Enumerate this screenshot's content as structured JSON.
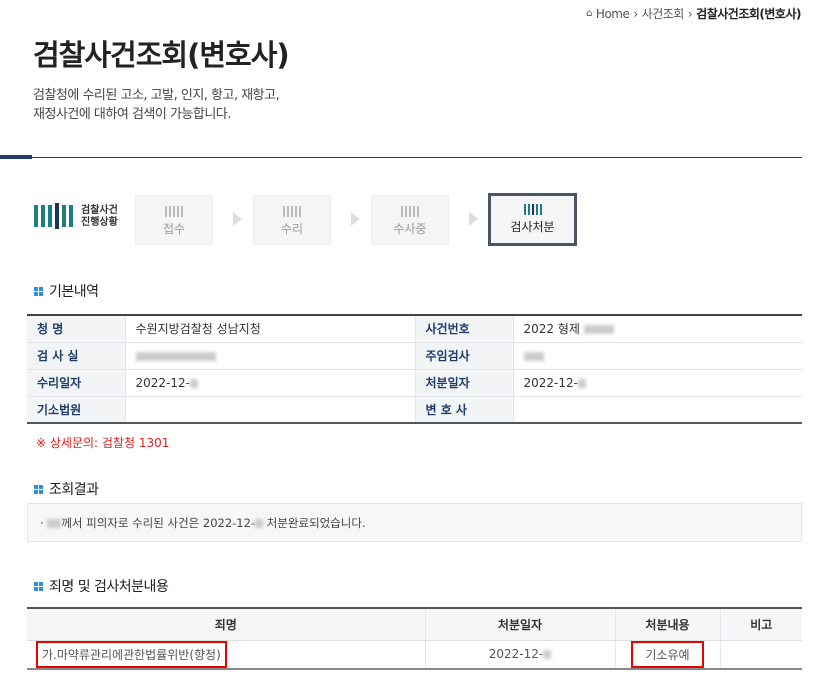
{
  "breadcrumb": {
    "home": "Home",
    "level1": "사건조회",
    "current": "검찰사건조회(변호사)"
  },
  "page": {
    "title": "검찰사건조회(변호사)",
    "desc_line1": "검찰청에 수리된 고소, 고발, 인지, 항고, 재항고,",
    "desc_line2": "재정사건에 대하여 검색이 가능합니다."
  },
  "progress": {
    "label_line1": "검찰사건",
    "label_line2": "진행상황",
    "steps": [
      {
        "label": "접수",
        "active": false
      },
      {
        "label": "수리",
        "active": false
      },
      {
        "label": "수사중",
        "active": false
      },
      {
        "label": "검사처분",
        "active": true
      }
    ]
  },
  "basic": {
    "title": "기본내역",
    "rows": [
      {
        "l1": "청  명",
        "v1": "수원지방검찰청 성남지청",
        "l2": "사건번호",
        "v2": "2022 형제"
      },
      {
        "l1": "검 사 실",
        "v1": "",
        "l2": "주임검사",
        "v2": ""
      },
      {
        "l1": "수리일자",
        "v1": "2022-12-",
        "l2": "처분일자",
        "v2": "2022-12-"
      },
      {
        "l1": "기소법원",
        "v1": "",
        "l2": "변 호 사",
        "v2": ""
      }
    ],
    "note": "※ 상세문의: 검찰청 1301"
  },
  "result": {
    "title": "조회결과",
    "text_a": "께서 피의자로 수리된 사건은 2022-12-",
    "text_b": "처분완료되었습니다."
  },
  "crime": {
    "title": "죄명 및 검사처분내용",
    "headers": [
      "죄명",
      "처분일자",
      "처분내용",
      "비고"
    ],
    "rows": [
      {
        "name": "가.마약류관리에관한법률위반(향정)",
        "date": "2022-12-",
        "disposition": "기소유예",
        "note": ""
      }
    ]
  },
  "colors": {
    "accent": "#1e3d6b",
    "teal": "#1b7d84",
    "highlight": "#e00000",
    "note": "#e02020"
  }
}
